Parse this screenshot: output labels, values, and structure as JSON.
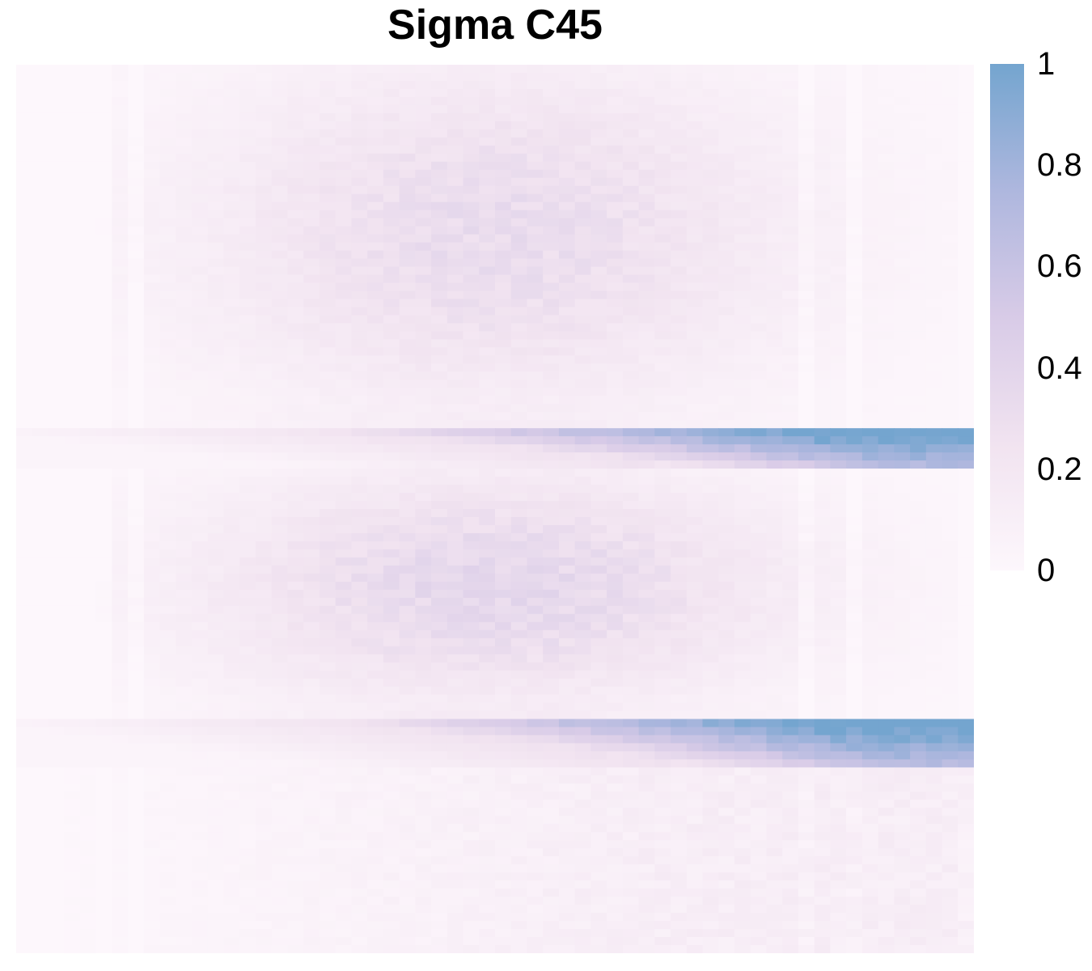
{
  "chart_data": {
    "type": "heatmap",
    "title": "Sigma C45",
    "xlabel": "",
    "ylabel": "",
    "colorbar": {
      "min": 0,
      "max": 1,
      "ticks": [
        "0",
        "0.2",
        "0.4",
        "0.6",
        "0.8",
        "1"
      ],
      "colors": [
        "#fdf7fc",
        "#e9d7ea",
        "#c8c3e3",
        "#9fb1da",
        "#74a5cf"
      ]
    },
    "grid": {
      "rows": 110,
      "cols": 60
    },
    "regions": [
      {
        "rows": [
          0,
          44
        ],
        "pattern": "diffuse",
        "peak": 0.35
      },
      {
        "rows": [
          45,
          49
        ],
        "pattern": "ramp-right",
        "peak": 1.0
      },
      {
        "rows": [
          50,
          80
        ],
        "pattern": "diffuse",
        "peak": 0.4
      },
      {
        "rows": [
          81,
          86
        ],
        "pattern": "ramp-right",
        "peak": 1.0
      },
      {
        "rows": [
          87,
          109
        ],
        "pattern": "weak",
        "peak": 0.15
      }
    ]
  }
}
